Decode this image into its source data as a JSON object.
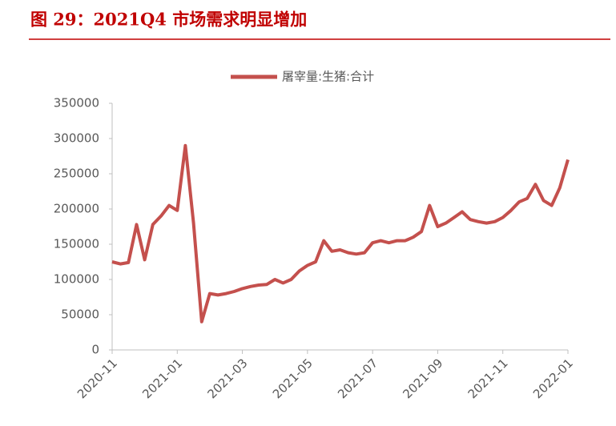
{
  "chart_data": {
    "type": "line",
    "title": "图 29：2021Q4 市场需求明显增加",
    "categories": [
      "2020-11",
      null,
      null,
      null,
      null,
      null,
      null,
      null,
      "2021-01",
      null,
      null,
      null,
      null,
      null,
      null,
      null,
      "2021-03",
      null,
      null,
      null,
      null,
      null,
      null,
      null,
      "2021-05",
      null,
      null,
      null,
      null,
      null,
      null,
      null,
      "2021-07",
      null,
      null,
      null,
      null,
      null,
      null,
      null,
      "2021-09",
      null,
      null,
      null,
      null,
      null,
      null,
      null,
      "2021-11",
      null,
      null,
      null,
      null,
      null,
      null,
      null,
      "2022-01"
    ],
    "series": [
      {
        "name": "屠宰量:生猪:合计",
        "color": "#c4504d",
        "values": [
          125000,
          122000,
          124000,
          178000,
          128000,
          178000,
          190000,
          205000,
          198000,
          290000,
          180000,
          40000,
          80000,
          78000,
          80000,
          83000,
          87000,
          90000,
          92000,
          93000,
          100000,
          95000,
          100000,
          112000,
          120000,
          125000,
          155000,
          140000,
          142000,
          138000,
          136000,
          138000,
          152000,
          155000,
          152000,
          155000,
          155000,
          160000,
          168000,
          205000,
          175000,
          180000,
          188000,
          196000,
          185000,
          182000,
          180000,
          182000,
          188000,
          198000,
          210000,
          215000,
          235000,
          212000,
          205000,
          230000,
          270000
        ]
      }
    ],
    "ylim": [
      0,
      350000
    ],
    "yticks": [
      0,
      50000,
      100000,
      150000,
      200000,
      250000,
      300000,
      350000
    ],
    "legend": "top"
  }
}
